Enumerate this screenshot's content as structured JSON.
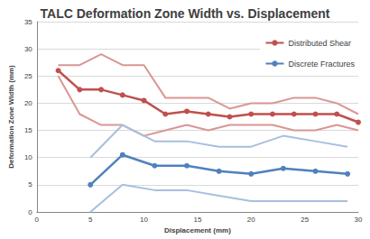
{
  "chart_data": {
    "type": "line",
    "title": "TALC Deformation Zone Width vs. Displacement",
    "x_label": "Displacement (mm)",
    "y_label": "Deformation Zone Width (mm)",
    "xlim": [
      0,
      30
    ],
    "xticks": [
      0,
      5,
      10,
      15,
      20,
      25,
      30
    ],
    "ylim": [
      0,
      35
    ],
    "yticks": [
      0,
      5,
      10,
      15,
      20,
      25,
      30,
      35
    ],
    "grid": true,
    "legend": "upper right",
    "series": [
      {
        "color": "#d99694",
        "marker": "none",
        "line_style": "solid",
        "x": [
          2,
          4,
          6,
          8,
          10,
          12,
          14,
          16,
          18,
          20,
          22,
          24,
          26,
          28,
          30
        ],
        "values": [
          27,
          27,
          29,
          27,
          27,
          21,
          21,
          21,
          19,
          20,
          20,
          21,
          21,
          20,
          18
        ]
      },
      {
        "color": "#d99694",
        "marker": "none",
        "line_style": "solid",
        "x": [
          2,
          4,
          6,
          8,
          10,
          12,
          14,
          16,
          18,
          20,
          22,
          24,
          26,
          28,
          30
        ],
        "values": [
          25,
          18,
          16,
          16,
          14,
          15,
          16,
          15,
          16,
          16,
          16,
          15,
          15,
          16,
          15
        ]
      },
      {
        "color": "#a7bfde",
        "marker": "none",
        "line_style": "solid",
        "x": [
          5,
          8,
          11,
          14,
          17,
          20,
          23,
          26,
          29
        ],
        "values": [
          10,
          16,
          13,
          13,
          12,
          12,
          14,
          13,
          12
        ]
      },
      {
        "color": "#a7bfde",
        "marker": "none",
        "line_style": "solid",
        "x": [
          5,
          8,
          11,
          14,
          17,
          20,
          23,
          26,
          29
        ],
        "values": [
          0,
          5,
          4,
          4,
          3,
          2,
          2,
          2,
          2
        ]
      },
      {
        "name": "Distributed Shear",
        "color": "#c0504d",
        "marker": "circle",
        "line_style": "solid",
        "x": [
          2,
          4,
          6,
          8,
          10,
          12,
          14,
          16,
          18,
          20,
          22,
          24,
          26,
          28,
          30
        ],
        "values": [
          26,
          22.5,
          22.5,
          21.5,
          20.5,
          18,
          18.5,
          18,
          17.5,
          18,
          18,
          18,
          18,
          18,
          16.5
        ]
      },
      {
        "name": "Discrete Fractures",
        "color": "#4f81bd",
        "marker": "circle",
        "line_style": "solid",
        "x": [
          5,
          8,
          11,
          14,
          17,
          20,
          23,
          26,
          29
        ],
        "values": [
          5,
          10.5,
          8.5,
          8.5,
          7.5,
          7,
          8,
          7.5,
          7
        ]
      }
    ]
  }
}
